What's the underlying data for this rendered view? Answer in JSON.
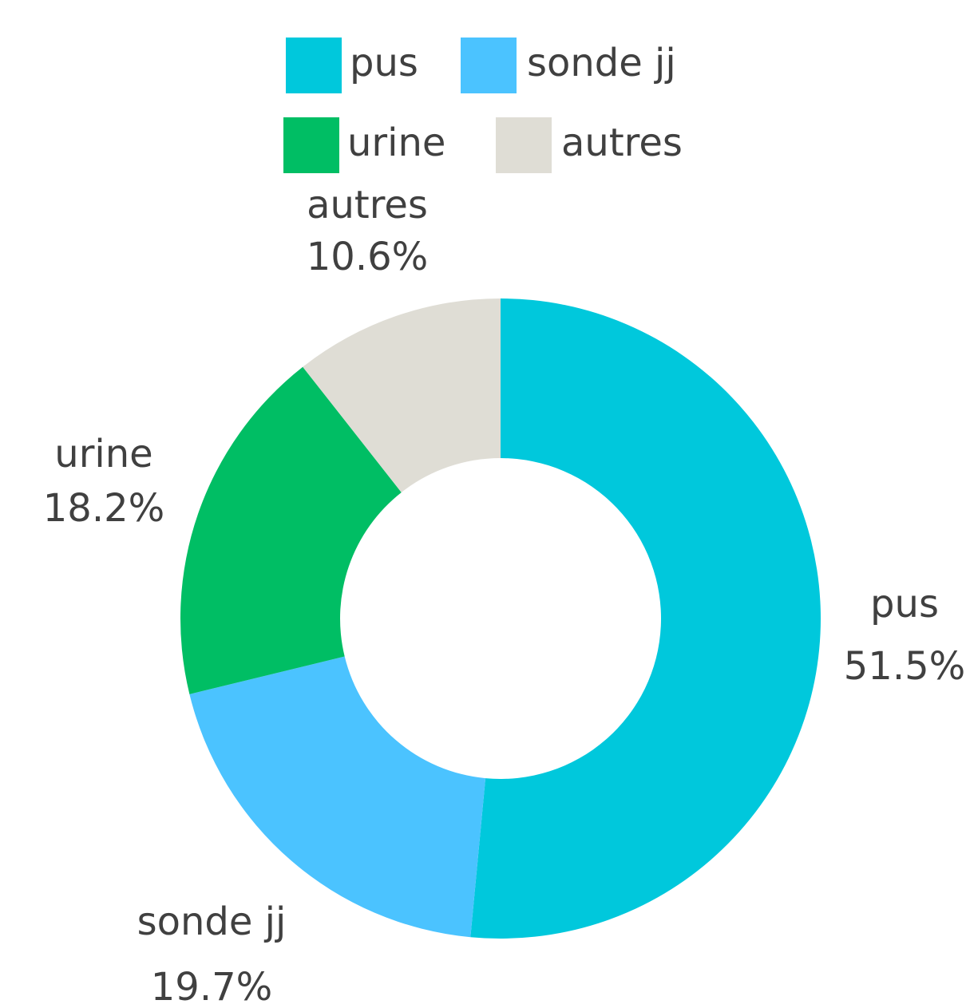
{
  "chart_data": {
    "type": "donut",
    "categories": [
      "pus",
      "sonde jj",
      "urine",
      "autres"
    ],
    "values": [
      51.5,
      19.7,
      18.2,
      10.6
    ],
    "value_labels": [
      "51.5%",
      "19.7%",
      "18.2%",
      "10.6%"
    ],
    "colors": [
      "#00c8dc",
      "#4bc3ff",
      "#00be64",
      "#dfddd5"
    ],
    "legend": "top"
  }
}
